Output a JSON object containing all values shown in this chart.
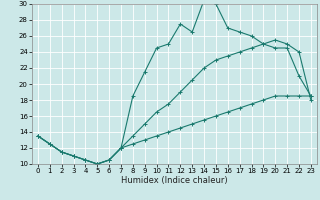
{
  "xlabel": "Humidex (Indice chaleur)",
  "bg_color": "#cce8e8",
  "grid_color": "#ffffff",
  "line_color": "#1a7a6e",
  "xlim": [
    -0.5,
    23.5
  ],
  "ylim": [
    10,
    30
  ],
  "xticks": [
    0,
    1,
    2,
    3,
    4,
    5,
    6,
    7,
    8,
    9,
    10,
    11,
    12,
    13,
    14,
    15,
    16,
    17,
    18,
    19,
    20,
    21,
    22,
    23
  ],
  "yticks": [
    10,
    12,
    14,
    16,
    18,
    20,
    22,
    24,
    26,
    28,
    30
  ],
  "line1_x": [
    0,
    1,
    2,
    3,
    4,
    5,
    6,
    7,
    8,
    9,
    10,
    11,
    12,
    13,
    14,
    15,
    16,
    17,
    18,
    19,
    20,
    21,
    22,
    23
  ],
  "line1_y": [
    13.5,
    12.5,
    11.5,
    11.0,
    10.5,
    10.0,
    10.5,
    12.0,
    18.5,
    21.5,
    24.5,
    25.0,
    27.5,
    26.5,
    30.5,
    30.0,
    27.0,
    26.5,
    26.0,
    25.0,
    24.5,
    24.5,
    21.0,
    18.5
  ],
  "line2_x": [
    0,
    1,
    2,
    3,
    4,
    5,
    6,
    7,
    8,
    9,
    10,
    11,
    12,
    13,
    14,
    15,
    16,
    17,
    18,
    19,
    20,
    21,
    22,
    23
  ],
  "line2_y": [
    13.5,
    12.5,
    11.5,
    11.0,
    10.5,
    10.0,
    10.5,
    12.0,
    13.5,
    15.0,
    16.5,
    17.5,
    19.0,
    20.5,
    22.0,
    23.0,
    23.5,
    24.0,
    24.5,
    25.0,
    25.5,
    25.0,
    24.0,
    18.0
  ],
  "line3_x": [
    0,
    1,
    2,
    3,
    4,
    5,
    6,
    7,
    8,
    9,
    10,
    11,
    12,
    13,
    14,
    15,
    16,
    17,
    18,
    19,
    20,
    21,
    22,
    23
  ],
  "line3_y": [
    13.5,
    12.5,
    11.5,
    11.0,
    10.5,
    10.0,
    10.5,
    12.0,
    12.5,
    13.0,
    13.5,
    14.0,
    14.5,
    15.0,
    15.5,
    16.0,
    16.5,
    17.0,
    17.5,
    18.0,
    18.5,
    18.5,
    18.5,
    18.5
  ],
  "tick_labelsize": 5,
  "xlabel_fontsize": 6
}
